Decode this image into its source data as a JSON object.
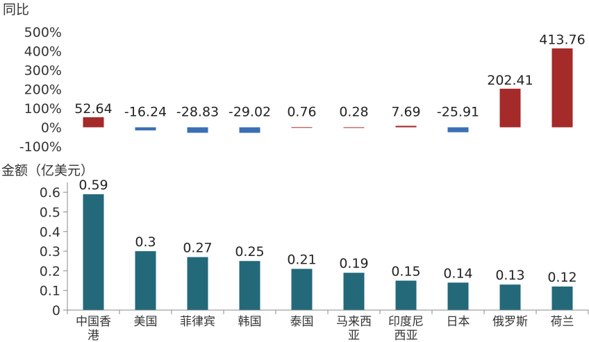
{
  "chart_data": [
    {
      "type": "bar",
      "title": "同比",
      "categories": [
        "中国香港",
        "美国",
        "菲律宾",
        "韩国",
        "泰国",
        "马来西亚",
        "印度尼西亚",
        "日本",
        "俄罗斯",
        "荷兰"
      ],
      "values": [
        52.64,
        -16.24,
        -28.83,
        -29.02,
        0.76,
        0.28,
        7.69,
        -25.91,
        202.41,
        413.76
      ],
      "value_labels": [
        "52.64",
        "-16.24",
        "-28.83",
        "-29.02",
        "0.76",
        "0.28",
        "7.69",
        "-25.91",
        "202.41",
        "413.76"
      ],
      "ylim": [
        -100,
        500
      ],
      "yticks": [
        -100,
        0,
        100,
        200,
        300,
        400,
        500
      ],
      "ytick_labels": [
        "-100%",
        "0%",
        "100%",
        "200%",
        "300%",
        "400%",
        "500%"
      ],
      "positive_color": "#a52a2a",
      "negative_color": "#3a6fb4",
      "grid": false
    },
    {
      "type": "bar",
      "title": "金额（亿美元）",
      "categories": [
        "中国香港",
        "美国",
        "菲律宾",
        "韩国",
        "泰国",
        "马来西亚",
        "印度尼西亚",
        "日本",
        "俄罗斯",
        "荷兰"
      ],
      "category_lines": [
        [
          "中国香",
          "港"
        ],
        [
          "美国"
        ],
        [
          "菲律宾"
        ],
        [
          "韩国"
        ],
        [
          "泰国"
        ],
        [
          "马来西",
          "亚"
        ],
        [
          "印度尼",
          "西亚"
        ],
        [
          "日本"
        ],
        [
          "俄罗斯"
        ],
        [
          "荷兰"
        ]
      ],
      "values": [
        0.59,
        0.3,
        0.27,
        0.25,
        0.21,
        0.19,
        0.15,
        0.14,
        0.13,
        0.12
      ],
      "value_labels": [
        "0.59",
        "0.3",
        "0.27",
        "0.25",
        "0.21",
        "0.19",
        "0.15",
        "0.14",
        "0.13",
        "0.12"
      ],
      "ylim": [
        0,
        0.65
      ],
      "yticks": [
        0,
        0.1,
        0.2,
        0.3,
        0.4,
        0.5,
        0.6
      ],
      "ytick_labels": [
        "0",
        "0.1",
        "0.2",
        "0.3",
        "0.4",
        "0.5",
        "0.6"
      ],
      "bar_color": "#23697a",
      "grid": false
    }
  ]
}
